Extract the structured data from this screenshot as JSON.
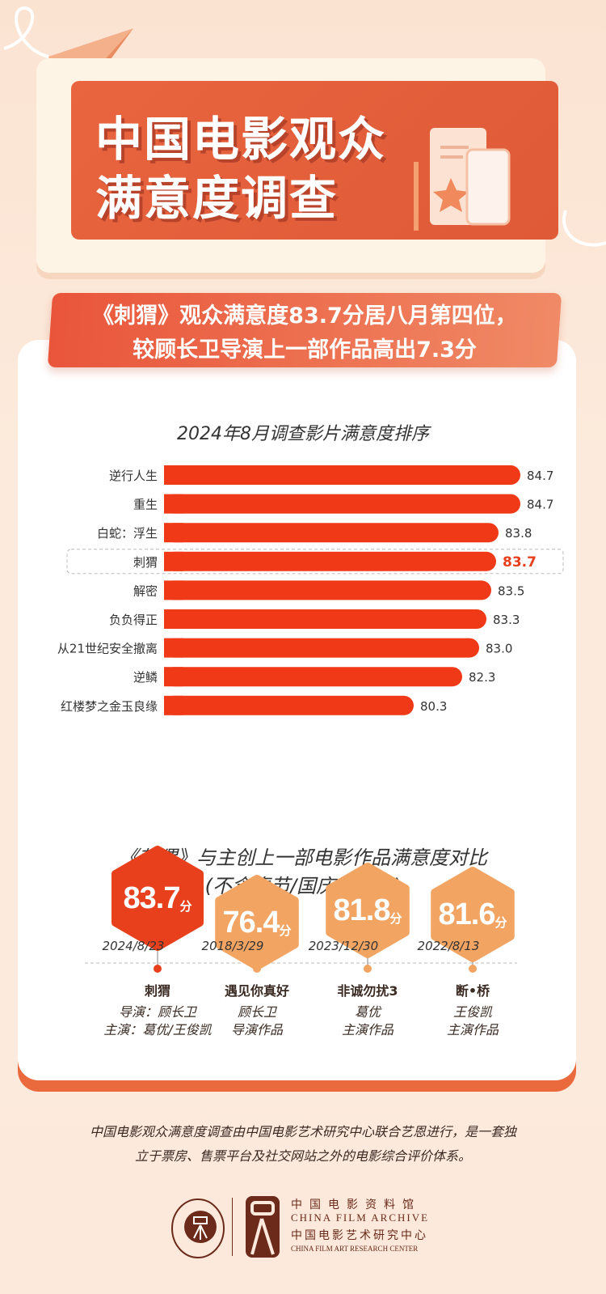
{
  "header": {
    "title_line1": "中国电影观众",
    "title_line2": "满意度调查"
  },
  "banner": {
    "line1": "《刺猬》观众满意度83.7分居八月第四位，",
    "line2": "较顾长卫导演上一部作品高出7.3分"
  },
  "colors": {
    "bar": "#f03a17",
    "highlight_text": "#e8401c",
    "primary_hex": "#e8401c",
    "secondary_hex": "#f2a463",
    "header": "#e5603d"
  },
  "chart_data": {
    "type": "bar",
    "orientation": "horizontal",
    "title": "2024年8月调查影片满意度排序",
    "categories": [
      "逆行人生",
      "重生",
      "白蛇：浮生",
      "刺猬",
      "解密",
      "负负得正",
      "从21世纪安全撤离",
      "逆鳞",
      "红楼梦之金玉良缘"
    ],
    "values": [
      84.7,
      84.7,
      83.8,
      83.7,
      83.5,
      83.3,
      83.0,
      82.3,
      80.3
    ],
    "value_labels": [
      "84.7",
      "84.7",
      "83.8",
      "83.7",
      "83.5",
      "83.3",
      "83.0",
      "82.3",
      "80.3"
    ],
    "highlight": "刺猬",
    "xlim": [
      70,
      85.5
    ]
  },
  "comparison": {
    "title_line1": "《刺猬》与主创上一部电影作品满意度对比",
    "title_line2": "(不含春节/国庆档影片)",
    "unit": "分",
    "items": [
      {
        "score": "83.7",
        "date": "2024/8/23",
        "name": "刺猬",
        "sub1": "导演：顾长卫",
        "sub2": "主演：葛优/王俊凯"
      },
      {
        "score": "76.4",
        "date": "2018/3/29",
        "name": "遇见你真好",
        "sub1": "顾长卫",
        "sub2": "导演作品"
      },
      {
        "score": "81.8",
        "date": "2023/12/30",
        "name": "非诚勿扰3",
        "sub1": "葛优",
        "sub2": "主演作品"
      },
      {
        "score": "81.6",
        "date": "2022/8/13",
        "name": "断•桥",
        "sub1": "王俊凯",
        "sub2": "主演作品"
      }
    ]
  },
  "footer": {
    "line1": "中国电影观众满意度调查由中国电影艺术研究中心联合艺恩进行，是一套独",
    "line2": "立于票房、售票平台及社交网站之外的电影综合评价体系。",
    "logo_cn1": "中国电影资料馆",
    "logo_en1": "CHINA FILM ARCHIVE",
    "logo_cn2": "中国电影艺术研究中心",
    "logo_en2": "CHINA FILM ART RESEARCH CENTER",
    "seal_text": "CHINA FILM ARCHIVE"
  }
}
